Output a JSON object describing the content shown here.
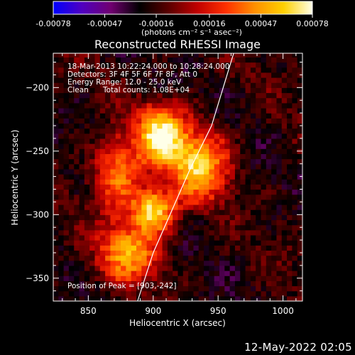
{
  "colorbar": {
    "tick_labels": [
      "-0.00078",
      "-0.00047",
      "-0.00016",
      "0.00016",
      "0.00047",
      "0.00078"
    ],
    "tick_values": [
      -0.00078,
      -0.00047,
      -0.00016,
      0.00016,
      0.00047,
      0.00078
    ],
    "range": [
      -0.00078,
      0.00078
    ],
    "units_label": "(photons cm⁻² s⁻¹ asec⁻²)",
    "colormap_stops": [
      "#0000ff",
      "#5000c0",
      "#700070",
      "#000000",
      "#5a0000",
      "#c00000",
      "#ff3000",
      "#ff9000",
      "#ffd000",
      "#ffffe8"
    ]
  },
  "chart_data": {
    "type": "heatmap",
    "title": "Reconstructed RHESSI Image",
    "xlabel": "Heliocentric X (arcsec)",
    "ylabel": "Heliocentric Y (arcsec)",
    "xlim": [
      823,
      1015
    ],
    "ylim": [
      -368,
      -173
    ],
    "x_ticks": [
      850,
      900,
      950,
      1000
    ],
    "y_ticks": [
      -350,
      -300,
      -250,
      -200
    ],
    "x_tick_labels": [
      "850",
      "900",
      "950",
      "1000"
    ],
    "y_tick_labels": [
      "−350",
      "−300",
      "−250",
      "−200"
    ],
    "annotations": {
      "time": "18-Mar-2013 10:22:24.000 to 10:28:24.000",
      "detectors": "Detectors: 3F 4F 5F 6F 7F 8F, Att 0",
      "energy": "Energy Range: 12.0 - 25.0 keV",
      "method": "Clean",
      "counts": "Total counts: 1.08E+04",
      "peak": "Position of Peak = [903,-242]"
    },
    "peak_position": [
      903,
      -242
    ],
    "sources": [
      {
        "x": 905,
        "y": -240,
        "amplitude": 0.00078,
        "sx": 12,
        "sy": 14
      },
      {
        "x": 898,
        "y": -298,
        "amplitude": 0.0007,
        "sx": 11,
        "sy": 11
      },
      {
        "x": 932,
        "y": -262,
        "amplitude": 0.0006,
        "sx": 14,
        "sy": 16
      },
      {
        "x": 880,
        "y": -330,
        "amplitude": 0.0005,
        "sx": 14,
        "sy": 14
      },
      {
        "x": 872,
        "y": -270,
        "amplitude": 0.0004,
        "sx": 12,
        "sy": 18
      }
    ],
    "limb_curve": [
      [
        888,
        -368
      ],
      [
        900,
        -330
      ],
      [
        913,
        -300
      ],
      [
        928,
        -265
      ],
      [
        945,
        -230
      ],
      [
        962,
        -173
      ]
    ]
  },
  "footer": {
    "date": "12-May-2022 02:05"
  }
}
